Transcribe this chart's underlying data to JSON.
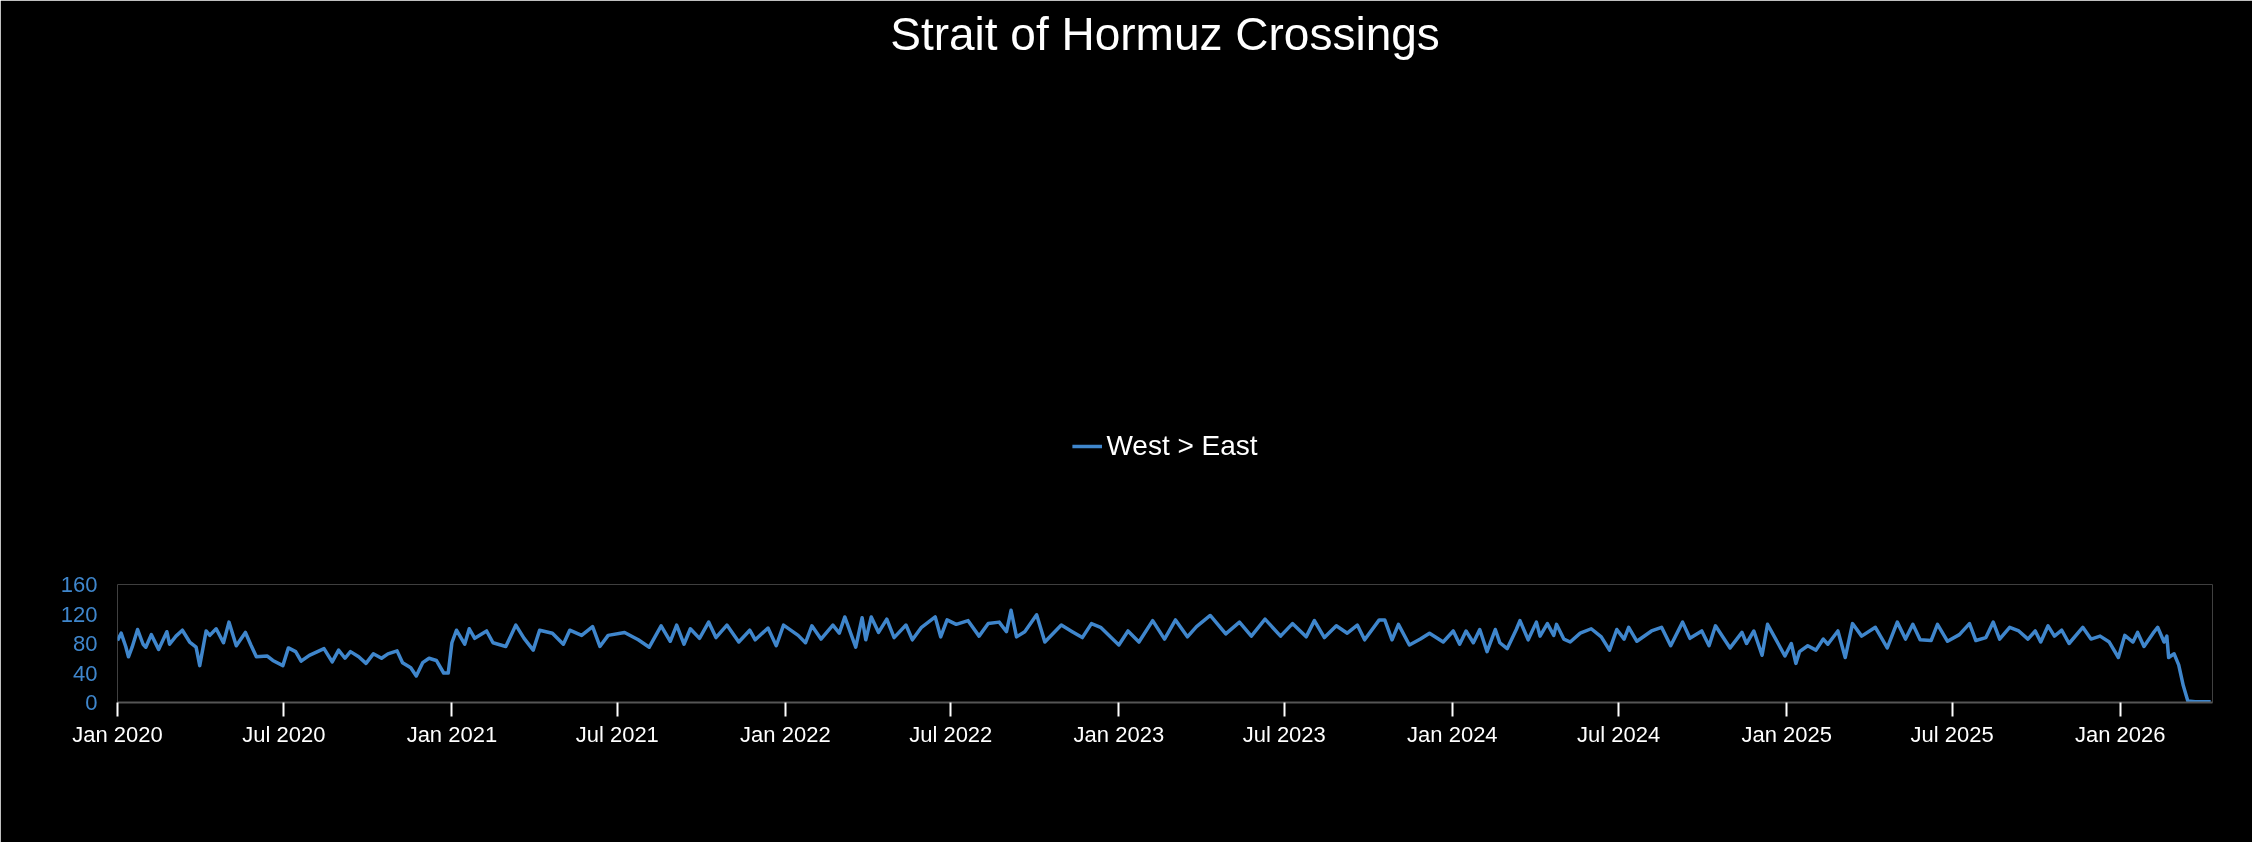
{
  "chart_data": {
    "type": "line",
    "title": "Strait of Hormuz Crossings",
    "x": [
      "2020-01-01",
      "2020-01-05",
      "2020-01-10",
      "2020-01-13",
      "2020-01-17",
      "2020-01-23",
      "2020-01-29",
      "2020-02-01",
      "2020-02-07",
      "2020-02-15",
      "2020-02-24",
      "2020-02-27",
      "2020-03-05",
      "2020-03-12",
      "2020-03-20",
      "2020-03-27",
      "2020-03-31",
      "2020-04-07",
      "2020-04-11",
      "2020-04-18",
      "2020-04-26",
      "2020-05-02",
      "2020-05-10",
      "2020-05-20",
      "2020-05-26",
      "2020-06-01",
      "2020-06-13",
      "2020-06-19",
      "2020-06-30",
      "2020-07-06",
      "2020-07-14",
      "2020-07-20",
      "2020-07-29",
      "2020-08-14",
      "2020-08-23",
      "2020-08-30",
      "2020-09-06",
      "2020-09-12",
      "2020-09-21",
      "2020-09-29",
      "2020-10-07",
      "2020-10-16",
      "2020-10-23",
      "2020-11-02",
      "2020-11-08",
      "2020-11-17",
      "2020-11-23",
      "2020-11-30",
      "2020-12-07",
      "2020-12-15",
      "2020-12-23",
      "2020-12-28",
      "2021-01-01",
      "2021-01-06",
      "2021-01-15",
      "2021-01-20",
      "2021-01-26",
      "2021-02-08",
      "2021-02-15",
      "2021-03-01",
      "2021-03-12",
      "2021-03-21",
      "2021-03-31",
      "2021-04-07",
      "2021-04-21",
      "2021-05-03",
      "2021-05-10",
      "2021-05-23",
      "2021-06-04",
      "2021-06-12",
      "2021-06-21",
      "2021-07-09",
      "2021-07-24",
      "2021-08-05",
      "2021-08-18",
      "2021-08-28",
      "2021-09-04",
      "2021-09-12",
      "2021-09-19",
      "2021-09-29",
      "2021-10-09",
      "2021-10-17",
      "2021-10-29",
      "2021-11-11",
      "2021-11-23",
      "2021-11-29",
      "2021-12-13",
      "2021-12-22",
      "2021-12-30",
      "2022-01-15",
      "2022-01-23",
      "2022-01-30",
      "2022-02-09",
      "2022-02-22",
      "2022-03-01",
      "2022-03-07",
      "2022-03-19",
      "2022-03-26",
      "2022-03-30",
      "2022-04-05",
      "2022-04-13",
      "2022-04-22",
      "2022-04-30",
      "2022-05-13",
      "2022-05-20",
      "2022-05-30",
      "2022-06-14",
      "2022-06-20",
      "2022-06-27",
      "2022-07-07",
      "2022-07-20",
      "2022-08-01",
      "2022-08-11",
      "2022-08-23",
      "2022-08-31",
      "2022-09-05",
      "2022-09-11",
      "2022-09-20",
      "2022-10-03",
      "2022-10-12",
      "2022-10-30",
      "2022-11-11",
      "2022-11-22",
      "2022-12-02",
      "2022-12-12",
      "2023-01-01",
      "2023-01-11",
      "2023-01-23",
      "2023-02-07",
      "2023-02-20",
      "2023-03-04",
      "2023-03-17",
      "2023-03-27",
      "2023-04-11",
      "2023-04-28",
      "2023-05-13",
      "2023-05-26",
      "2023-06-10",
      "2023-06-27",
      "2023-07-10",
      "2023-07-25",
      "2023-08-03",
      "2023-08-14",
      "2023-08-27",
      "2023-09-08",
      "2023-09-19",
      "2023-09-27",
      "2023-10-13",
      "2023-10-19",
      "2023-10-27",
      "2023-11-03",
      "2023-11-15",
      "2023-11-27",
      "2023-12-07",
      "2023-12-22",
      "2024-01-02",
      "2024-01-09",
      "2024-01-16",
      "2024-01-24",
      "2024-01-31",
      "2024-02-08",
      "2024-02-17",
      "2024-02-22",
      "2024-03-01",
      "2024-03-11",
      "2024-03-15",
      "2024-03-24",
      "2024-04-02",
      "2024-04-06",
      "2024-04-14",
      "2024-04-21",
      "2024-04-24",
      "2024-05-02",
      "2024-05-09",
      "2024-05-20",
      "2024-06-01",
      "2024-06-12",
      "2024-06-21",
      "2024-06-29",
      "2024-07-07",
      "2024-07-12",
      "2024-07-21",
      "2024-08-06",
      "2024-08-17",
      "2024-08-27",
      "2024-09-09",
      "2024-09-17",
      "2024-09-30",
      "2024-10-08",
      "2024-10-15",
      "2024-10-31",
      "2024-11-13",
      "2024-11-18",
      "2024-11-26",
      "2024-12-05",
      "2024-12-11",
      "2024-12-23",
      "2024-12-30",
      "2025-01-06",
      "2025-01-11",
      "2025-01-15",
      "2025-01-24",
      "2025-02-02",
      "2025-02-10",
      "2025-02-15",
      "2025-02-26",
      "2025-03-06",
      "2025-03-14",
      "2025-03-24",
      "2025-04-08",
      "2025-04-21",
      "2025-05-02",
      "2025-05-11",
      "2025-05-19",
      "2025-05-27",
      "2025-06-08",
      "2025-06-15",
      "2025-06-26",
      "2025-07-09",
      "2025-07-20",
      "2025-07-27",
      "2025-08-07",
      "2025-08-15",
      "2025-08-22",
      "2025-09-02",
      "2025-09-12",
      "2025-09-22",
      "2025-09-30",
      "2025-10-06",
      "2025-10-14",
      "2025-10-21",
      "2025-10-29",
      "2025-11-06",
      "2025-11-21",
      "2025-11-30",
      "2025-12-10",
      "2025-12-20",
      "2025-12-30",
      "2026-01-06",
      "2026-01-15",
      "2026-01-20",
      "2026-01-27",
      "2026-02-06",
      "2026-02-11",
      "2026-02-18",
      "2026-02-21",
      "2026-02-23",
      "2026-03-01",
      "2026-03-06",
      "2026-03-11",
      "2026-03-16",
      "2026-03-24",
      "2026-04-06",
      "2026-04-10"
    ],
    "series": [
      {
        "name": "West > East",
        "color": "#3f86cc",
        "values": [
          84,
          94,
          76,
          62,
          75,
          99,
          79,
          75,
          92,
          72,
          96,
          79,
          90,
          98,
          82,
          75,
          50,
          97,
          91,
          100,
          81,
          109,
          77,
          95,
          78,
          62,
          63,
          57,
          50,
          74,
          69,
          56,
          64,
          73,
          55,
          71,
          60,
          69,
          62,
          53,
          66,
          60,
          66,
          70,
          54,
          47,
          36,
          54,
          60,
          57,
          40,
          40,
          81,
          98,
          79,
          100,
          87,
          97,
          81,
          76,
          105,
          87,
          71,
          98,
          94,
          79,
          98,
          91,
          103,
          76,
          91,
          95,
          85,
          75,
          104,
          83,
          105,
          79,
          100,
          87,
          109,
          88,
          105,
          82,
          98,
          85,
          101,
          77,
          105,
          91,
          81,
          104,
          86,
          105,
          94,
          116,
          75,
          115,
          85,
          116,
          95,
          113,
          88,
          105,
          85,
          102,
          116,
          89,
          112,
          106,
          111,
          90,
          107,
          109,
          96,
          125,
          89,
          96,
          119,
          82,
          105,
          96,
          88,
          107,
          102,
          78,
          97,
          82,
          111,
          86,
          112,
          89,
          103,
          118,
          93,
          109,
          90,
          113,
          90,
          107,
          89,
          111,
          88,
          104,
          94,
          105,
          85,
          112,
          112,
          85,
          106,
          78,
          86,
          94,
          82,
          97,
          79,
          97,
          81,
          99,
          69,
          99,
          81,
          73,
          99,
          111,
          85,
          109,
          90,
          107,
          91,
          106,
          86,
          82,
          94,
          100,
          89,
          71,
          99,
          86,
          102,
          83,
          97,
          102,
          77,
          109,
          87,
          97,
          77,
          104,
          74,
          95,
          80,
          97,
          64,
          106,
          79,
          63,
          80,
          53,
          69,
          77,
          71,
          86,
          79,
          97,
          61,
          107,
          90,
          102,
          74,
          109,
          86,
          106,
          85,
          84,
          106,
          83,
          92,
          107,
          84,
          88,
          109,
          86,
          102,
          97,
          86,
          97,
          82,
          104,
          90,
          98,
          80,
          102,
          86,
          90,
          82,
          61,
          91,
          82,
          95,
          76,
          94,
          102,
          82,
          90,
          61,
          66,
          51,
          23,
          2,
          1,
          1,
          1
        ]
      }
    ],
    "xlim": [
      "2020-01-01",
      "2026-04-12"
    ],
    "xticks": [
      {
        "value": "2020-01-01",
        "label": "Jan 2020"
      },
      {
        "value": "2020-07-01",
        "label": "Jul 2020"
      },
      {
        "value": "2021-01-01",
        "label": "Jan 2021"
      },
      {
        "value": "2021-07-01",
        "label": "Jul 2021"
      },
      {
        "value": "2022-01-01",
        "label": "Jan 2022"
      },
      {
        "value": "2022-07-01",
        "label": "Jul 2022"
      },
      {
        "value": "2023-01-01",
        "label": "Jan 2023"
      },
      {
        "value": "2023-07-01",
        "label": "Jul 2023"
      },
      {
        "value": "2024-01-01",
        "label": "Jan 2024"
      },
      {
        "value": "2024-07-01",
        "label": "Jul 2024"
      },
      {
        "value": "2025-01-01",
        "label": "Jan 2025"
      },
      {
        "value": "2025-07-01",
        "label": "Jul 2025"
      },
      {
        "value": "2026-01-01",
        "label": "Jan 2026"
      }
    ],
    "ylim": [
      0,
      160
    ],
    "yticks": [
      0,
      40,
      80,
      120,
      160
    ],
    "grid": false,
    "legend": "top",
    "marker": "none",
    "line_style": "solid"
  }
}
